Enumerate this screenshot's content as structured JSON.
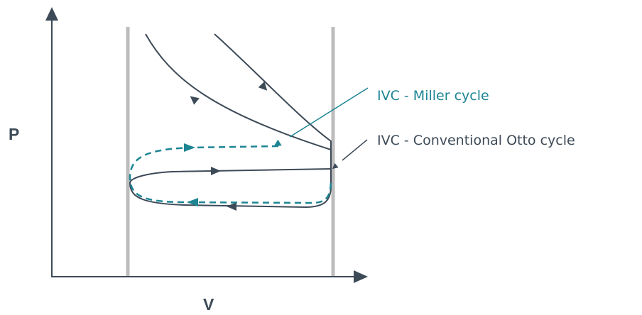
{
  "axes": {
    "y_label": "P",
    "x_label": "V"
  },
  "callouts": {
    "miller": "IVC - Miller cycle",
    "otto": "IVC - Conventional Otto cycle"
  },
  "colors": {
    "dark": "#3d4a57",
    "teal": "#1d8593",
    "gray_line": "#bcbcbc",
    "background": "#ffffff"
  }
}
